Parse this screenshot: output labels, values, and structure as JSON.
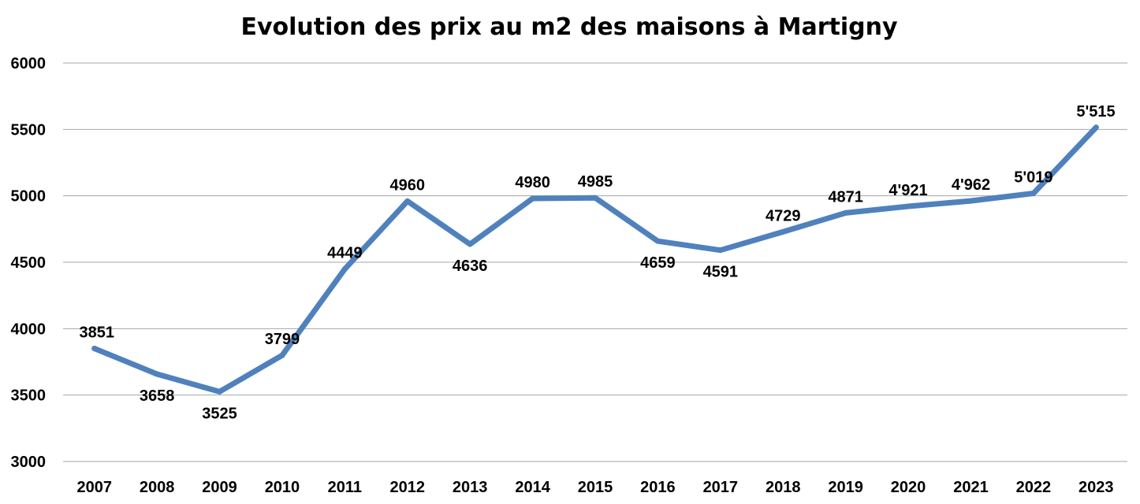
{
  "chart_data": {
    "type": "line",
    "title": "Evolution des prix au m2 des maisons à Martigny",
    "xlabel": "",
    "ylabel": "",
    "categories": [
      "2007",
      "2008",
      "2009",
      "2010",
      "2011",
      "2012",
      "2013",
      "2014",
      "2015",
      "2016",
      "2017",
      "2018",
      "2019",
      "2020",
      "2021",
      "2022",
      "2023"
    ],
    "series": [
      {
        "values": [
          3851,
          3658,
          3525,
          3799,
          4449,
          4960,
          4636,
          4980,
          4985,
          4659,
          4591,
          4729,
          4871,
          4921,
          4962,
          5019,
          5515
        ],
        "labels": [
          "3851",
          "3658",
          "3525",
          "3799",
          "4449",
          "4960",
          "4636",
          "4980",
          "4985",
          "4659",
          "4591",
          "4729",
          "4871",
          "4'921",
          "4'962",
          "5'019",
          "5'515"
        ],
        "label_positions": [
          "above",
          "below",
          "below",
          "above",
          "above",
          "above",
          "below",
          "above",
          "above",
          "below",
          "below",
          "above",
          "above",
          "above",
          "above",
          "above",
          "above"
        ],
        "color": "#4f81bd"
      }
    ],
    "ylim": [
      3000,
      6000
    ],
    "yticks": [
      "3000",
      "3500",
      "4000",
      "4500",
      "5000",
      "5500",
      "6000"
    ],
    "grid": true,
    "legend": "none"
  }
}
